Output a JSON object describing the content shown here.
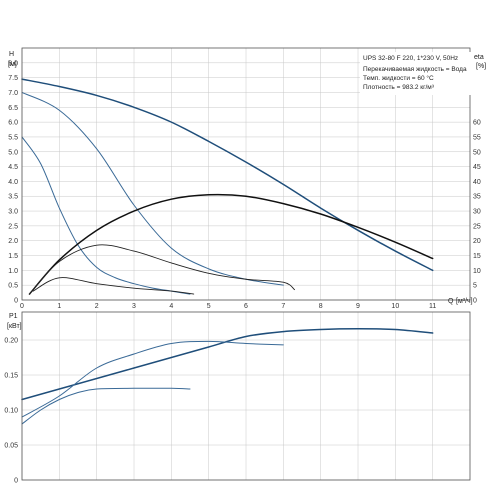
{
  "chart_data": [
    {
      "type": "line",
      "title": "UPS 32-80 F 220, 1*230 V, 50Hz",
      "info": [
        "Перекачиваемая жидкость = Вода",
        "Темп. жидкости = 60 °C",
        "Плотность = 983.2 кг/м³"
      ],
      "xlabel_symbol": "Q",
      "xlabel_unit": "[м³/ч]",
      "ylabel_symbol": "H",
      "ylabel_unit": "[м]",
      "y2label_symbol": "eta",
      "y2label_unit": "[%]",
      "xlim": [
        0,
        12
      ],
      "ylim": [
        0,
        8.5
      ],
      "y2lim": [
        0,
        85
      ],
      "x_ticks": [
        0,
        1,
        2,
        3,
        4,
        5,
        6,
        7,
        8,
        9,
        10,
        11
      ],
      "y_ticks": [
        0,
        0.5,
        1.0,
        1.5,
        2.0,
        2.5,
        3.0,
        3.5,
        4.0,
        4.5,
        5.0,
        5.5,
        6.0,
        6.5,
        7.0,
        7.5,
        8.0
      ],
      "y_tick_labels": [
        "0",
        "0.5",
        "1.0",
        "1.5",
        "2.0",
        "2.5",
        "3.0",
        "3.5",
        "4.0",
        "4.5",
        "5.0",
        "5.5",
        "6.0",
        "6.5",
        "7.0",
        "7.5",
        "8.0"
      ],
      "y2_ticks": [
        0,
        5,
        10,
        15,
        20,
        25,
        30,
        35,
        40,
        45,
        50,
        55,
        60
      ],
      "grid": true,
      "series": [
        {
          "role": "head",
          "color": "#1f4e7a",
          "width": 1.5,
          "x": [
            0,
            1,
            2,
            3,
            4,
            5,
            6,
            7,
            8,
            9,
            10,
            11
          ],
          "y": [
            7.45,
            7.2,
            6.9,
            6.5,
            6.0,
            5.35,
            4.65,
            3.9,
            3.1,
            2.35,
            1.65,
            1.0
          ]
        },
        {
          "role": "head",
          "color": "#3a6a97",
          "width": 1.0,
          "x": [
            0,
            1,
            2,
            3,
            4,
            5,
            6,
            7
          ],
          "y": [
            7.0,
            6.4,
            5.1,
            3.2,
            1.75,
            1.05,
            0.7,
            0.5
          ]
        },
        {
          "role": "head",
          "color": "#3a6a97",
          "width": 1.0,
          "x": [
            0,
            0.5,
            1,
            1.5,
            2,
            2.5,
            3,
            3.5,
            4,
            4.5
          ],
          "y": [
            5.5,
            4.6,
            3.1,
            1.85,
            1.1,
            0.75,
            0.55,
            0.4,
            0.3,
            0.2
          ]
        },
        {
          "role": "efficiency",
          "color": "#111111",
          "width": 1.5,
          "x": [
            0.2,
            1,
            2,
            3,
            4,
            5,
            6,
            7,
            8,
            9,
            10,
            11
          ],
          "y": [
            2,
            13.5,
            23.5,
            30,
            34,
            35.5,
            35,
            32.5,
            29,
            24.5,
            19.5,
            14
          ]
        },
        {
          "role": "efficiency",
          "color": "#222222",
          "width": 0.9,
          "x": [
            0.2,
            1,
            2,
            3,
            4,
            5,
            6,
            7,
            7.3
          ],
          "y": [
            2,
            13,
            18.5,
            16.5,
            12.5,
            9,
            7,
            6,
            3.5
          ]
        },
        {
          "role": "efficiency",
          "color": "#222222",
          "width": 0.9,
          "x": [
            0.3,
            1,
            2,
            3,
            4,
            4.6
          ],
          "y": [
            3,
            7.5,
            5.5,
            4,
            3,
            2
          ]
        }
      ]
    },
    {
      "type": "line",
      "ylabel_symbol": "P1",
      "ylabel_unit": "[кВт]",
      "xlim": [
        0,
        12
      ],
      "ylim": [
        0,
        0.24
      ],
      "y_ticks": [
        0,
        0.05,
        0.1,
        0.15,
        0.2
      ],
      "y_tick_labels": [
        "0",
        "0.05",
        "0.10",
        "0.15",
        "0.20"
      ],
      "grid": true,
      "series": [
        {
          "role": "power",
          "color": "#1f4e7a",
          "width": 1.5,
          "x": [
            0,
            1,
            2,
            3,
            4,
            5,
            6,
            7,
            8,
            9,
            10,
            11
          ],
          "y": [
            0.115,
            0.13,
            0.145,
            0.16,
            0.175,
            0.19,
            0.205,
            0.212,
            0.215,
            0.216,
            0.215,
            0.21
          ]
        },
        {
          "role": "power",
          "color": "#3a6a97",
          "width": 1.0,
          "x": [
            0,
            1,
            2,
            3,
            4,
            5,
            6,
            7
          ],
          "y": [
            0.09,
            0.12,
            0.16,
            0.18,
            0.195,
            0.198,
            0.195,
            0.193
          ]
        },
        {
          "role": "power",
          "color": "#3a6a97",
          "width": 1.0,
          "x": [
            0,
            0.5,
            1,
            1.5,
            2,
            3,
            4,
            4.5
          ],
          "y": [
            0.08,
            0.1,
            0.115,
            0.125,
            0.13,
            0.131,
            0.131,
            0.13
          ]
        }
      ]
    }
  ]
}
